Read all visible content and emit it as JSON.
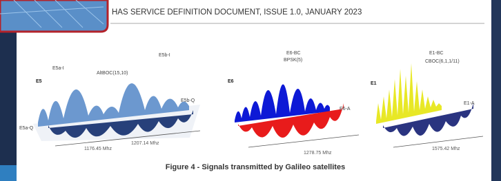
{
  "header": {
    "title": "HAS SERVICE DEFINITION DOCUMENT, ISSUE 1.0, JANUARY 2023"
  },
  "figure": {
    "panels": [
      {
        "band": "E5",
        "labels": [
          "E5a-I",
          "AltBOC(15,10)",
          "E5b-I",
          "E5b-Q",
          "E5a-Q"
        ],
        "frequencies": [
          "1176.45 Mhz",
          "1207.14 Mhz"
        ]
      },
      {
        "band": "E6",
        "labels": [
          "E6-BC",
          "BPSK(5)",
          "E6-A"
        ],
        "frequencies": [
          "1278.75 Mhz"
        ]
      },
      {
        "band": "E1",
        "labels": [
          "E1-BC",
          "CBOC(6,1,1/11)",
          "E1-A"
        ],
        "frequencies": [
          "1575.42 Mhz"
        ]
      }
    ],
    "caption": "Figure 4 - Signals transmitted by Galileo satellites"
  }
}
